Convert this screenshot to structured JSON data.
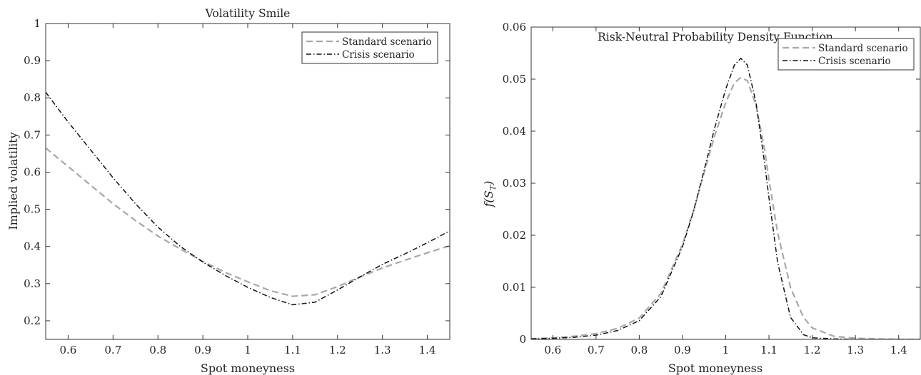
{
  "chart_data": [
    {
      "type": "line",
      "title": "Volatility Smile",
      "xlabel": "Spot moneyness",
      "ylabel": "Implied volatility",
      "xlim": [
        0.55,
        1.45
      ],
      "ylim": [
        0.15,
        1.0
      ],
      "xticks": [
        0.6,
        0.7,
        0.8,
        0.9,
        1.0,
        1.1,
        1.2,
        1.3,
        1.4
      ],
      "xtick_labels": [
        "0.6",
        "0.7",
        "0.8",
        "0.9",
        "1",
        "1.1",
        "1.2",
        "1.3",
        "1.4"
      ],
      "yticks": [
        0.2,
        0.3,
        0.4,
        0.5,
        0.6,
        0.7,
        0.8,
        0.9,
        1.0
      ],
      "ytick_labels": [
        "0.2",
        "0.3",
        "0.4",
        "0.5",
        "0.6",
        "0.7",
        "0.8",
        "0.9",
        "1"
      ],
      "grid": false,
      "legend": "top-right",
      "series": [
        {
          "name": "Standard scenario",
          "color": "#a8a8a8",
          "style": "dashed",
          "x": [
            0.55,
            0.6,
            0.65,
            0.7,
            0.75,
            0.8,
            0.85,
            0.9,
            0.95,
            1.0,
            1.05,
            1.1,
            1.15,
            1.2,
            1.25,
            1.3,
            1.35,
            1.4,
            1.45
          ],
          "y": [
            0.665,
            0.615,
            0.565,
            0.515,
            0.47,
            0.428,
            0.393,
            0.36,
            0.33,
            0.305,
            0.281,
            0.266,
            0.27,
            0.292,
            0.318,
            0.342,
            0.363,
            0.383,
            0.402
          ]
        },
        {
          "name": "Crisis scenario",
          "color": "#111111",
          "style": "dashdot",
          "x": [
            0.55,
            0.6,
            0.65,
            0.7,
            0.75,
            0.8,
            0.85,
            0.9,
            0.95,
            1.0,
            1.05,
            1.1,
            1.15,
            1.2,
            1.25,
            1.3,
            1.35,
            1.4,
            1.45
          ],
          "y": [
            0.815,
            0.735,
            0.66,
            0.585,
            0.515,
            0.452,
            0.4,
            0.358,
            0.322,
            0.29,
            0.263,
            0.243,
            0.25,
            0.283,
            0.318,
            0.352,
            0.38,
            0.41,
            0.442
          ]
        }
      ]
    },
    {
      "type": "line",
      "title": "Risk-Neutral Probability Density Function",
      "xlabel": "Spot moneyness",
      "ylabel": "f(S_T)",
      "ylabel_main": "f(S",
      "ylabel_sub": "T",
      "ylabel_end": ")",
      "xlim": [
        0.55,
        1.45
      ],
      "ylim": [
        0,
        0.06
      ],
      "xticks": [
        0.6,
        0.7,
        0.8,
        0.9,
        1.0,
        1.1,
        1.2,
        1.3,
        1.4
      ],
      "xtick_labels": [
        "0.6",
        "0.7",
        "0.8",
        "0.9",
        "1",
        "1.1",
        "1.2",
        "1.3",
        "1.4"
      ],
      "yticks": [
        0,
        0.01,
        0.02,
        0.03,
        0.04,
        0.05,
        0.06
      ],
      "ytick_labels": [
        "0",
        "0.01",
        "0.02",
        "0.03",
        "0.04",
        "0.05",
        "0.06"
      ],
      "grid": false,
      "legend": "top-right",
      "series": [
        {
          "name": "Standard scenario",
          "color": "#a8a8a8",
          "style": "dashed",
          "x": [
            0.55,
            0.6,
            0.65,
            0.7,
            0.75,
            0.8,
            0.85,
            0.9,
            0.925,
            0.95,
            0.975,
            1.0,
            1.02,
            1.035,
            1.05,
            1.07,
            1.09,
            1.1,
            1.12,
            1.15,
            1.18,
            1.2,
            1.25,
            1.3,
            1.35,
            1.4,
            1.45
          ],
          "y": [
            0.0001,
            0.0003,
            0.0006,
            0.0011,
            0.0021,
            0.0041,
            0.0088,
            0.0183,
            0.0245,
            0.032,
            0.0393,
            0.0455,
            0.0493,
            0.0503,
            0.0497,
            0.045,
            0.0364,
            0.0306,
            0.0205,
            0.0099,
            0.0042,
            0.0022,
            0.0006,
            0.0002,
            0.0001,
            0.0,
            0.0
          ]
        },
        {
          "name": "Crisis scenario",
          "color": "#111111",
          "style": "dashdot",
          "x": [
            0.55,
            0.6,
            0.65,
            0.7,
            0.75,
            0.8,
            0.85,
            0.9,
            0.925,
            0.95,
            0.975,
            1.0,
            1.02,
            1.035,
            1.05,
            1.07,
            1.09,
            1.1,
            1.12,
            1.15,
            1.18,
            1.2,
            1.25,
            1.3,
            1.35,
            1.4,
            1.45
          ],
          "y": [
            0.0001,
            0.0002,
            0.0004,
            0.0008,
            0.0017,
            0.0036,
            0.0082,
            0.0178,
            0.0245,
            0.0325,
            0.0408,
            0.0481,
            0.0527,
            0.054,
            0.0527,
            0.0455,
            0.0338,
            0.0272,
            0.0148,
            0.0042,
            0.0009,
            0.0003,
            0.0001,
            0.0,
            0.0,
            0.0,
            0.0
          ]
        }
      ]
    }
  ]
}
